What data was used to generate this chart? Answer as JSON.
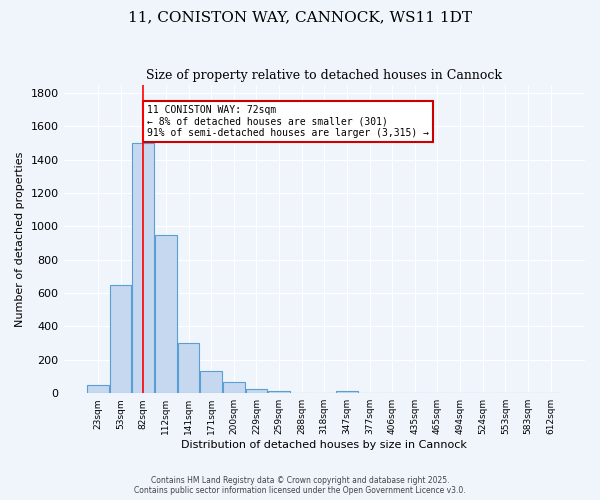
{
  "title": "11, CONISTON WAY, CANNOCK, WS11 1DT",
  "subtitle": "Size of property relative to detached houses in Cannock",
  "xlabel": "Distribution of detached houses by size in Cannock",
  "ylabel": "Number of detached properties",
  "bar_color": "#c5d8f0",
  "bar_edge_color": "#5a9fd4",
  "categories": [
    "23sqm",
    "53sqm",
    "82sqm",
    "112sqm",
    "141sqm",
    "171sqm",
    "200sqm",
    "229sqm",
    "259sqm",
    "288sqm",
    "318sqm",
    "347sqm",
    "377sqm",
    "406sqm",
    "435sqm",
    "465sqm",
    "494sqm",
    "524sqm",
    "553sqm",
    "583sqm",
    "612sqm"
  ],
  "values": [
    50,
    650,
    1500,
    950,
    300,
    135,
    65,
    25,
    15,
    0,
    0,
    15,
    0,
    0,
    0,
    0,
    0,
    0,
    0,
    0,
    0
  ],
  "bin_width": 29,
  "red_line_x": 2,
  "annotation_text": "11 CONISTON WAY: 72sqm\n← 8% of detached houses are smaller (301)\n91% of semi-detached houses are larger (3,315) →",
  "annotation_box_color": "#ffffff",
  "annotation_edge_color": "#cc0000",
  "ylim": [
    0,
    1850
  ],
  "yticks": [
    0,
    200,
    400,
    600,
    800,
    1000,
    1200,
    1400,
    1600,
    1800
  ],
  "background_color": "#f0f4fb",
  "grid_color": "#ffffff",
  "footer_line1": "Contains HM Land Registry data © Crown copyright and database right 2025.",
  "footer_line2": "Contains public sector information licensed under the Open Government Licence v3.0."
}
